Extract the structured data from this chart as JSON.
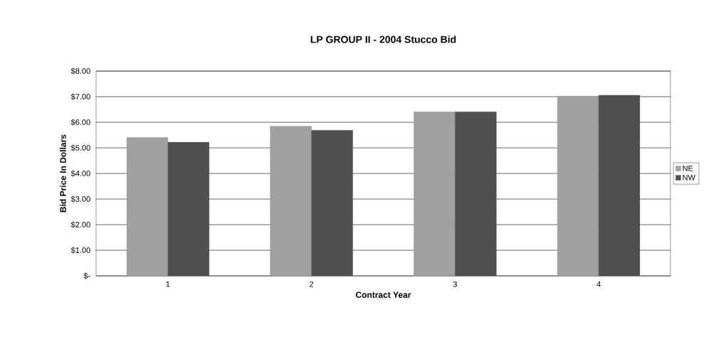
{
  "chart_data": {
    "type": "bar",
    "title": "LP GROUP II - 2004 Stucco Bid",
    "xlabel": "Contract Year",
    "ylabel": "Bid Price In Dollars",
    "categories": [
      "1",
      "2",
      "3",
      "4"
    ],
    "series": [
      {
        "name": "NE",
        "color": "#a0a0a0",
        "values": [
          5.41,
          5.85,
          6.41,
          7.03
        ]
      },
      {
        "name": "NW",
        "color": "#505050",
        "values": [
          5.22,
          5.69,
          6.41,
          7.06
        ]
      }
    ],
    "ylim": [
      0,
      8
    ],
    "yticks": [
      {
        "value": 0,
        "label": "$-"
      },
      {
        "value": 1,
        "label": "$1.00"
      },
      {
        "value": 2,
        "label": "$2.00"
      },
      {
        "value": 3,
        "label": "$3.00"
      },
      {
        "value": 4,
        "label": "$4.00"
      },
      {
        "value": 5,
        "label": "$5.00"
      },
      {
        "value": 6,
        "label": "$6.00"
      },
      {
        "value": 7,
        "label": "$7.00"
      },
      {
        "value": 8,
        "label": "$8.00"
      }
    ],
    "grid": "y",
    "legend": "right"
  }
}
